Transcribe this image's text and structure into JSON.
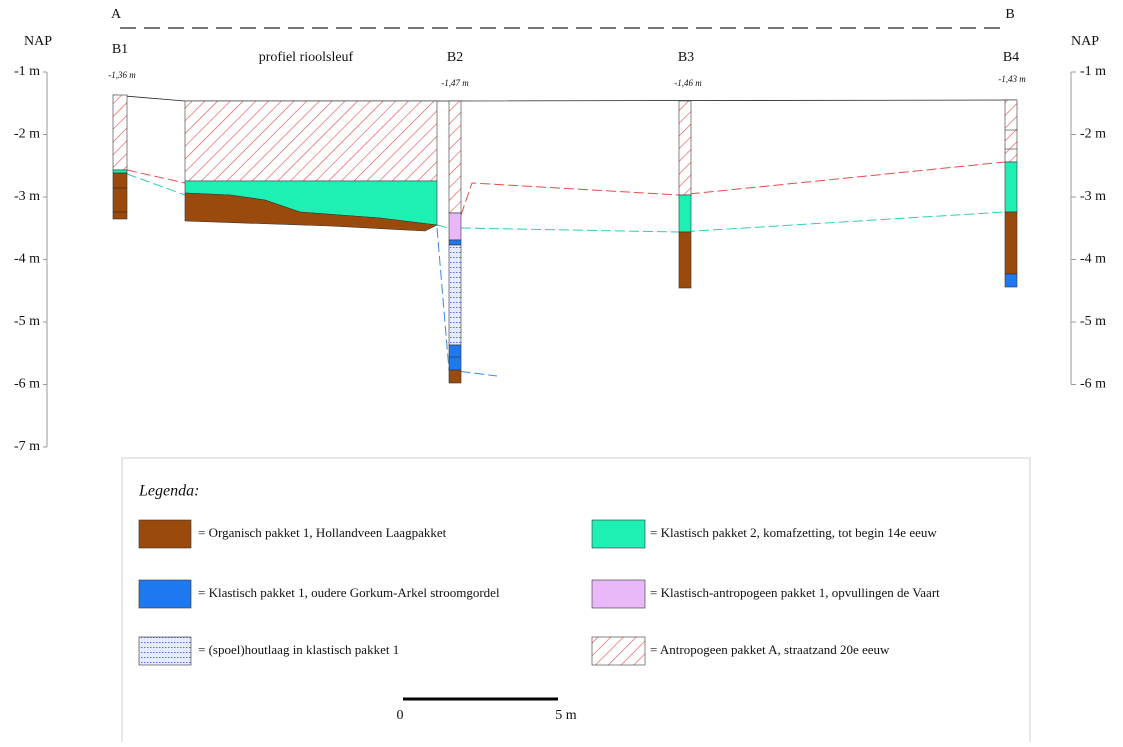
{
  "header": {
    "left": "A",
    "right": "B"
  },
  "axis_left": {
    "title": "NAP",
    "labels": [
      "-1 m",
      "-2 m",
      "-3 m",
      "-4 m",
      "-5 m",
      "-6 m",
      "-7 m"
    ]
  },
  "axis_right": {
    "title": "NAP",
    "labels": [
      "-1 m",
      "-2 m",
      "-3 m",
      "-4 m",
      "-5 m",
      "-6 m"
    ]
  },
  "boreholes": [
    {
      "name": "B1",
      "level": "-1,36 m"
    },
    {
      "name": "B2",
      "level": "-1,47 m"
    },
    {
      "name": "B3",
      "level": "-1,46 m"
    },
    {
      "name": "B4",
      "level": "-1,43 m"
    }
  ],
  "trench_label": "profiel rioolsleuf",
  "legend": {
    "title": "Legenda:",
    "items": [
      "= Organisch pakket 1, Hollandveen Laagpakket",
      "= Klastisch pakket 1, oudere Gorkum-Arkel stroomgordel",
      "= (spoel)houtlaag in klastisch pakket 1",
      "= Klastisch pakket 2, komafzetting, tot begin 14e eeuw",
      "= Klastisch-antropogeen pakket 1, opvullingen de Vaart",
      "= Antropogeen pakket A, straatzand 20e eeuw"
    ]
  },
  "scale": {
    "start": "0",
    "end": "5 m"
  }
}
